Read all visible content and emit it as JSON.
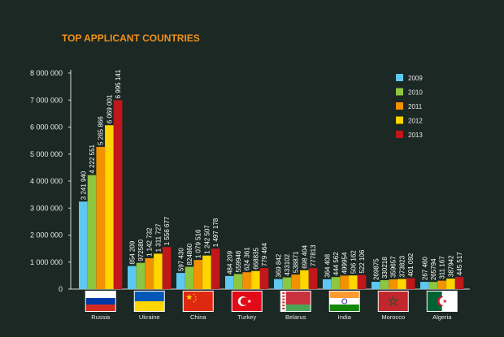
{
  "chart_data": {
    "type": "bar",
    "title": "TOP APPLICANT COUNTRIES",
    "xlabel": "",
    "ylabel": "",
    "ylim": [
      0,
      8000000
    ],
    "yticks": [
      0,
      1000000,
      2000000,
      3000000,
      4000000,
      5000000,
      6000000,
      7000000,
      8000000
    ],
    "ytick_labels": [
      "0",
      "1 000 000",
      "2 000 000",
      "3 000 000",
      "4 000 000",
      "5 000 000",
      "6 000 000",
      "7 000 000",
      "8 000 000"
    ],
    "grid": false,
    "legend_position": "right",
    "categories": [
      "Russia",
      "Ukraine",
      "China",
      "Turkey",
      "Belarus",
      "India",
      "Morocco",
      "Algeria"
    ],
    "series": [
      {
        "name": "2009",
        "color": "#5ec8f0",
        "values": [
          3241940,
          854209,
          597430,
          484209,
          369842,
          364408,
          269875,
          267460
        ],
        "labels": [
          "3 241 940",
          "854 209",
          "597 430",
          "484 209",
          "369 842",
          "364 408",
          "269875",
          "267 460"
        ]
      },
      {
        "name": "2010",
        "color": "#8dc63f",
        "values": [
          4222551,
          972580,
          824860,
          559946,
          433102,
          444562,
          330218,
          265794
        ],
        "labels": [
          "4 222 551",
          "972580",
          "824860",
          "559946",
          "433102",
          "444 562",
          "330218",
          "265794"
        ]
      },
      {
        "name": "2011",
        "color": "#f39200",
        "values": [
          5265866,
          1142732,
          1079516,
          624361,
          538871,
          499954,
          359657,
          311167
        ],
        "labels": [
          "5 265 866",
          "1 142 732",
          "1 079 516",
          "624 361",
          "538871",
          "499954",
          "359657",
          "311 167"
        ]
      },
      {
        "name": "2012",
        "color": "#ffd500",
        "values": [
          6069001,
          1311727,
          1242507,
          668835,
          698404,
          506162,
          373823,
          387942
        ],
        "labels": [
          "6 069 001",
          "1 311 727",
          "1 242 507",
          "668835",
          "698 404",
          "506 162",
          "373823",
          "387942"
        ]
      },
      {
        "name": "2013",
        "color": "#c0171b",
        "values": [
          6995141,
          1556677,
          1497178,
          779464,
          777813,
          522106,
          401092,
          445517
        ],
        "labels": [
          "6 995 141",
          "1 556 677",
          "1 497 178",
          "779 464",
          "777813",
          "522 106",
          "401 092",
          "445 517"
        ]
      }
    ],
    "flags": [
      "russia-flag-icon",
      "ukraine-flag-icon",
      "china-flag-icon",
      "turkey-flag-icon",
      "belarus-flag-icon",
      "india-flag-icon",
      "morocco-flag-icon",
      "algeria-flag-icon"
    ]
  }
}
